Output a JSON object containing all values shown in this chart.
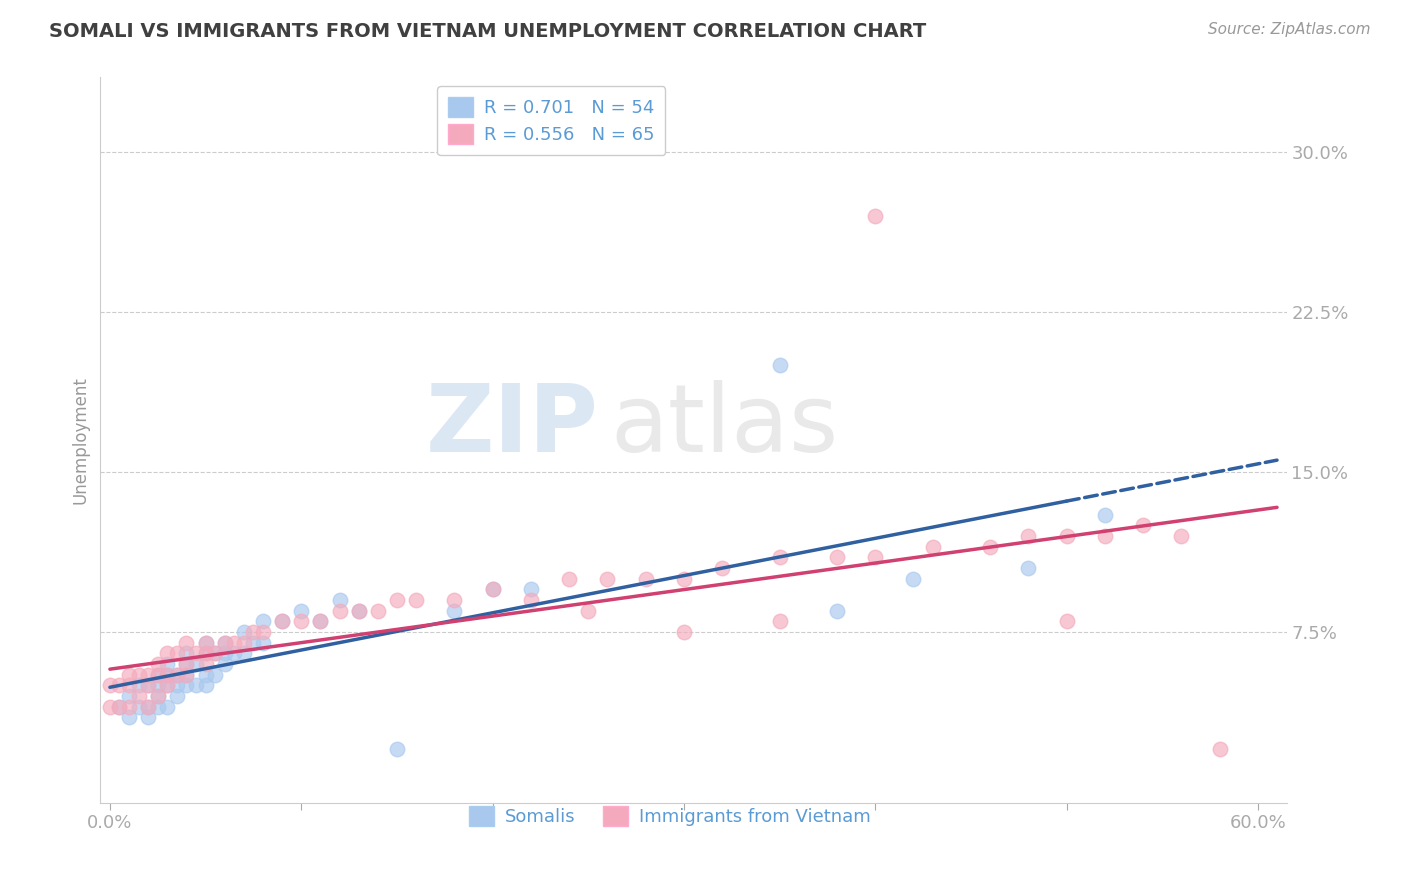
{
  "title": "SOMALI VS IMMIGRANTS FROM VIETNAM UNEMPLOYMENT CORRELATION CHART",
  "source_text": "Source: ZipAtlas.com",
  "ylabel": "Unemployment",
  "xlim": [
    -0.005,
    0.615
  ],
  "ylim": [
    -0.005,
    0.335
  ],
  "yticks": [
    0.075,
    0.15,
    0.225,
    0.3
  ],
  "ytick_labels": [
    "7.5%",
    "15.0%",
    "22.5%",
    "30.0%"
  ],
  "xticks": [
    0.0,
    0.1,
    0.2,
    0.3,
    0.4,
    0.5,
    0.6
  ],
  "xtick_labels": [
    "0.0%",
    "",
    "",
    "",
    "",
    "",
    "60.0%"
  ],
  "R_somali": 0.701,
  "N_somali": 54,
  "R_vietnam": 0.556,
  "N_vietnam": 65,
  "blue_color": "#A8C8EE",
  "pink_color": "#F4AABC",
  "blue_line_color": "#3060A0",
  "pink_line_color": "#D04070",
  "watermark_zip": "ZIP",
  "watermark_atlas": "atlas",
  "background_color": "#FFFFFF",
  "grid_color": "#CCCCCC",
  "axis_label_color": "#5B9BD5",
  "title_color": "#404040",
  "somali_x": [
    0.005,
    0.01,
    0.01,
    0.015,
    0.015,
    0.02,
    0.02,
    0.02,
    0.025,
    0.025,
    0.025,
    0.025,
    0.03,
    0.03,
    0.03,
    0.03,
    0.035,
    0.035,
    0.035,
    0.04,
    0.04,
    0.04,
    0.04,
    0.045,
    0.045,
    0.05,
    0.05,
    0.05,
    0.05,
    0.055,
    0.055,
    0.06,
    0.06,
    0.06,
    0.065,
    0.07,
    0.07,
    0.075,
    0.08,
    0.08,
    0.09,
    0.1,
    0.11,
    0.12,
    0.13,
    0.15,
    0.18,
    0.2,
    0.22,
    0.35,
    0.38,
    0.42,
    0.48,
    0.52
  ],
  "somali_y": [
    0.04,
    0.035,
    0.045,
    0.04,
    0.05,
    0.035,
    0.04,
    0.05,
    0.04,
    0.045,
    0.05,
    0.055,
    0.04,
    0.05,
    0.055,
    0.06,
    0.045,
    0.05,
    0.055,
    0.05,
    0.055,
    0.06,
    0.065,
    0.05,
    0.06,
    0.05,
    0.055,
    0.065,
    0.07,
    0.055,
    0.065,
    0.06,
    0.065,
    0.07,
    0.065,
    0.065,
    0.075,
    0.07,
    0.07,
    0.08,
    0.08,
    0.085,
    0.08,
    0.09,
    0.085,
    0.02,
    0.085,
    0.095,
    0.095,
    0.2,
    0.085,
    0.1,
    0.105,
    0.13
  ],
  "vietnam_x": [
    0.0,
    0.0,
    0.005,
    0.005,
    0.01,
    0.01,
    0.01,
    0.015,
    0.015,
    0.02,
    0.02,
    0.02,
    0.025,
    0.025,
    0.025,
    0.03,
    0.03,
    0.03,
    0.035,
    0.035,
    0.04,
    0.04,
    0.04,
    0.045,
    0.05,
    0.05,
    0.05,
    0.055,
    0.06,
    0.065,
    0.07,
    0.075,
    0.08,
    0.09,
    0.1,
    0.11,
    0.12,
    0.13,
    0.14,
    0.15,
    0.16,
    0.18,
    0.2,
    0.22,
    0.24,
    0.26,
    0.28,
    0.3,
    0.32,
    0.35,
    0.38,
    0.4,
    0.43,
    0.46,
    0.48,
    0.5,
    0.52,
    0.54,
    0.56,
    0.58,
    0.4,
    0.25,
    0.3,
    0.35,
    0.5
  ],
  "vietnam_y": [
    0.04,
    0.05,
    0.04,
    0.05,
    0.04,
    0.05,
    0.055,
    0.045,
    0.055,
    0.04,
    0.05,
    0.055,
    0.045,
    0.055,
    0.06,
    0.05,
    0.055,
    0.065,
    0.055,
    0.065,
    0.055,
    0.06,
    0.07,
    0.065,
    0.06,
    0.065,
    0.07,
    0.065,
    0.07,
    0.07,
    0.07,
    0.075,
    0.075,
    0.08,
    0.08,
    0.08,
    0.085,
    0.085,
    0.085,
    0.09,
    0.09,
    0.09,
    0.095,
    0.09,
    0.1,
    0.1,
    0.1,
    0.1,
    0.105,
    0.11,
    0.11,
    0.11,
    0.115,
    0.115,
    0.12,
    0.12,
    0.12,
    0.125,
    0.12,
    0.02,
    0.27,
    0.085,
    0.075,
    0.08,
    0.08
  ]
}
